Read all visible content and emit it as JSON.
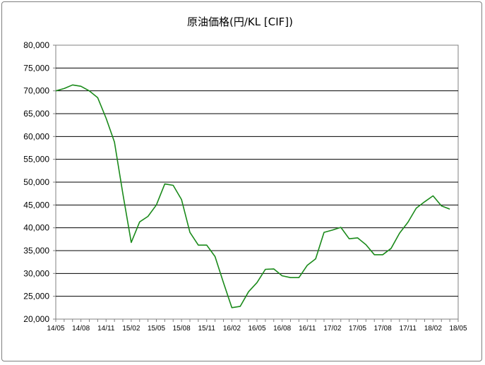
{
  "chart_data": {
    "type": "line",
    "title": "原油価格(円/KL [CIF])",
    "xlabel": "",
    "ylabel": "",
    "ylim": [
      20000,
      80000
    ],
    "y_ticks": [
      "20,000",
      "25,000",
      "30,000",
      "35,000",
      "40,000",
      "45,000",
      "50,000",
      "55,000",
      "60,000",
      "65,000",
      "70,000",
      "75,000",
      "80,000"
    ],
    "x_tick_labels": [
      "14/05",
      "14/08",
      "14/11",
      "15/02",
      "15/05",
      "15/08",
      "15/11",
      "16/02",
      "16/05",
      "16/08",
      "16/11",
      "17/02",
      "17/05",
      "17/08",
      "17/11",
      "18/02",
      "18/05"
    ],
    "grid": true,
    "legend": "none",
    "line_color": "#1a8a1a",
    "series": [
      {
        "x": [
          "14/05",
          "14/06",
          "14/07",
          "14/08",
          "14/09",
          "14/10",
          "14/11",
          "14/12",
          "15/01",
          "15/02",
          "15/03",
          "15/04",
          "15/05",
          "15/06",
          "15/07",
          "15/08",
          "15/09",
          "15/10",
          "15/11",
          "15/12",
          "16/01",
          "16/02",
          "16/03",
          "16/04",
          "16/05",
          "16/06",
          "16/07",
          "16/08",
          "16/09",
          "16/10",
          "16/11",
          "16/12",
          "17/01",
          "17/02",
          "17/03",
          "17/04",
          "17/05",
          "17/06",
          "17/07",
          "17/08",
          "17/09",
          "17/10",
          "17/11",
          "17/12",
          "18/01",
          "18/02",
          "18/03",
          "18/04"
        ],
        "values": [
          70000,
          70500,
          71300,
          71000,
          70000,
          68500,
          64000,
          58800,
          47500,
          36800,
          41300,
          42500,
          45000,
          49600,
          49300,
          46200,
          39000,
          36200,
          36200,
          33700,
          28000,
          22500,
          22800,
          26000,
          28000,
          30900,
          31000,
          29500,
          29100,
          29100,
          31800,
          33200,
          39000,
          39500,
          40100,
          37600,
          37800,
          36300,
          34100,
          34100,
          35500,
          38800,
          41200,
          44300,
          45700,
          47000,
          44800,
          44100
        ]
      }
    ]
  }
}
